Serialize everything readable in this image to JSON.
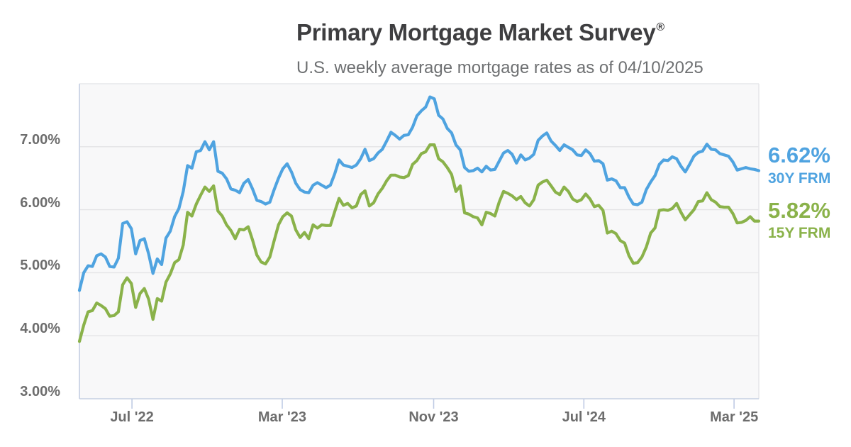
{
  "header": {
    "title": "Primary Mortgage Market Survey",
    "title_mark": "®",
    "subtitle": "U.S. weekly average mortgage rates as of 04/10/2025"
  },
  "colors": {
    "blue_30y": "#4FA3E0",
    "green_15y": "#8AB24A",
    "plot_bg": "#F8F8F9",
    "gridline": "#E3E3E5",
    "axis_border_left_bottom": "#C5CFE2",
    "frame_border_top_right": "#E6E7EA",
    "tick": "#BFCBE4",
    "axis_text": "#6D6D6D",
    "title_text": "#3E3E40",
    "subtitle_text": "#6E7072"
  },
  "chart_data": {
    "type": "line",
    "title": "Primary Mortgage Market Survey®",
    "subtitle": "U.S. weekly average mortgage rates as of 04/10/2025",
    "xlabel": "",
    "ylabel": "",
    "x_start_date": "2022-04-07",
    "x_end_date": "2025-04-10",
    "x_interval": "weekly",
    "ylim": [
      3.0,
      8.0
    ],
    "grid": "horizontal-only",
    "legend_position": "right-of-plot",
    "y_gridlines": [
      7,
      6,
      5,
      4
    ],
    "y_ticks": [
      {
        "label": "7.00%",
        "value": 7.0
      },
      {
        "label": "6.00%",
        "value": 6.0
      },
      {
        "label": "5.00%",
        "value": 5.0
      },
      {
        "label": "4.00%",
        "value": 4.0
      },
      {
        "label": "3.00%",
        "value": 3.0
      }
    ],
    "x_ticks": [
      {
        "label": "Jul '22",
        "pos": 0.0773
      },
      {
        "label": "Mar '23",
        "pos": 0.2985
      },
      {
        "label": "Nov '23",
        "pos": 0.5214
      },
      {
        "label": "Jul '24",
        "pos": 0.7425
      },
      {
        "label": "Mar '25",
        "pos": 0.9636
      }
    ],
    "series": [
      {
        "name": "30Y FRM",
        "current_label": "6.62%",
        "current_value": 6.62,
        "color": "#4FA3E0",
        "values": [
          4.72,
          5.0,
          5.11,
          5.1,
          5.27,
          5.3,
          5.25,
          5.1,
          5.09,
          5.23,
          5.78,
          5.81,
          5.7,
          5.3,
          5.51,
          5.54,
          5.3,
          4.99,
          5.22,
          5.13,
          5.55,
          5.66,
          5.89,
          6.02,
          6.29,
          6.7,
          6.66,
          6.92,
          6.94,
          7.08,
          6.95,
          7.08,
          6.61,
          6.58,
          6.49,
          6.33,
          6.31,
          6.27,
          6.42,
          6.48,
          6.33,
          6.15,
          6.13,
          6.09,
          6.12,
          6.32,
          6.5,
          6.65,
          6.73,
          6.6,
          6.42,
          6.32,
          6.28,
          6.27,
          6.39,
          6.43,
          6.39,
          6.35,
          6.39,
          6.57,
          6.79,
          6.71,
          6.69,
          6.67,
          6.71,
          6.81,
          6.96,
          6.78,
          6.81,
          6.9,
          6.96,
          7.09,
          7.23,
          7.18,
          7.12,
          7.18,
          7.19,
          7.31,
          7.49,
          7.57,
          7.63,
          7.79,
          7.76,
          7.5,
          7.44,
          7.29,
          7.22,
          7.03,
          6.95,
          6.67,
          6.61,
          6.62,
          6.66,
          6.6,
          6.69,
          6.63,
          6.64,
          6.77,
          6.9,
          6.94,
          6.88,
          6.74,
          6.87,
          6.79,
          6.82,
          6.88,
          7.1,
          7.17,
          7.22,
          7.09,
          7.02,
          6.94,
          7.03,
          6.99,
          6.95,
          6.87,
          6.86,
          6.95,
          6.89,
          6.77,
          6.78,
          6.73,
          6.47,
          6.49,
          6.46,
          6.35,
          6.35,
          6.2,
          6.09,
          6.08,
          6.12,
          6.32,
          6.44,
          6.54,
          6.72,
          6.79,
          6.78,
          6.84,
          6.81,
          6.69,
          6.6,
          6.72,
          6.85,
          6.91,
          6.93,
          7.04,
          6.96,
          6.95,
          6.89,
          6.87,
          6.85,
          6.76,
          6.63,
          6.65,
          6.67,
          6.65,
          6.64,
          6.62
        ]
      },
      {
        "name": "15Y FRM",
        "current_label": "5.82%",
        "current_value": 5.82,
        "color": "#8AB24A",
        "values": [
          3.91,
          4.17,
          4.38,
          4.4,
          4.52,
          4.48,
          4.43,
          4.31,
          4.32,
          4.38,
          4.81,
          4.92,
          4.83,
          4.45,
          4.67,
          4.75,
          4.58,
          4.26,
          4.59,
          4.55,
          4.85,
          4.98,
          5.16,
          5.21,
          5.44,
          5.96,
          5.9,
          6.09,
          6.23,
          6.36,
          6.29,
          6.38,
          5.98,
          5.9,
          5.76,
          5.67,
          5.54,
          5.69,
          5.68,
          5.73,
          5.52,
          5.28,
          5.17,
          5.14,
          5.25,
          5.51,
          5.76,
          5.89,
          5.95,
          5.9,
          5.68,
          5.56,
          5.64,
          5.54,
          5.76,
          5.71,
          5.76,
          5.75,
          5.75,
          5.97,
          6.18,
          6.07,
          6.1,
          6.03,
          6.06,
          6.24,
          6.3,
          6.06,
          6.11,
          6.25,
          6.34,
          6.46,
          6.55,
          6.55,
          6.52,
          6.51,
          6.54,
          6.72,
          6.78,
          6.89,
          6.92,
          7.03,
          7.03,
          6.81,
          6.76,
          6.67,
          6.56,
          6.29,
          6.38,
          5.95,
          5.93,
          5.89,
          5.87,
          5.76,
          5.96,
          5.94,
          5.9,
          6.12,
          6.29,
          6.26,
          6.22,
          6.16,
          6.21,
          6.11,
          6.06,
          6.16,
          6.39,
          6.44,
          6.47,
          6.38,
          6.28,
          6.24,
          6.36,
          6.29,
          6.17,
          6.13,
          6.16,
          6.25,
          6.17,
          6.05,
          6.07,
          5.99,
          5.63,
          5.66,
          5.62,
          5.51,
          5.47,
          5.27,
          5.15,
          5.16,
          5.25,
          5.41,
          5.63,
          5.71,
          5.99,
          6.0,
          5.99,
          6.02,
          6.1,
          5.96,
          5.84,
          5.92,
          6.0,
          6.13,
          6.14,
          6.27,
          6.16,
          6.12,
          6.05,
          6.04,
          6.04,
          5.94,
          5.79,
          5.8,
          5.83,
          5.89,
          5.82,
          5.82
        ]
      }
    ]
  }
}
